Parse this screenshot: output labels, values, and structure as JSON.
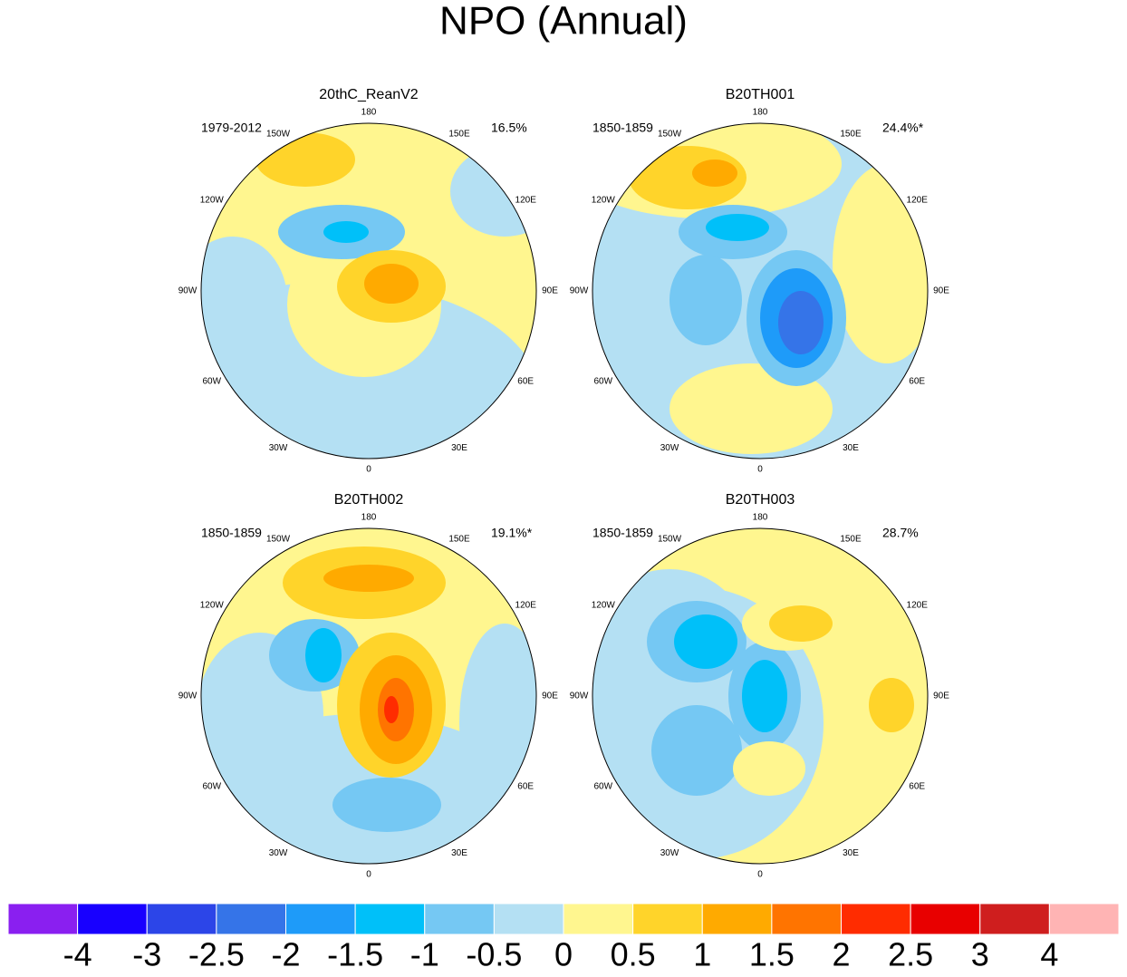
{
  "title": "NPO (Annual)",
  "panels": [
    {
      "title": "20thC_ReanV2",
      "period": "1979-2012",
      "variance": "16.5%"
    },
    {
      "title": "B20TH001",
      "period": "1850-1859",
      "variance": "24.4%*"
    },
    {
      "title": "B20TH002",
      "period": "1850-1859",
      "variance": "19.1%*"
    },
    {
      "title": "B20TH003",
      "period": "1850-1859",
      "variance": "28.7%"
    }
  ],
  "longitude_labels": [
    "0",
    "30E",
    "60E",
    "90E",
    "120E",
    "150E",
    "180",
    "150W",
    "120W",
    "90W",
    "60W",
    "30W"
  ],
  "colorbar": {
    "colors": [
      "#8a1ff0",
      "#1800ff",
      "#2c45e8",
      "#3574e8",
      "#1e9bf9",
      "#00c0f9",
      "#75c8f3",
      "#b4e0f3",
      "#fff68f",
      "#ffd42a",
      "#ffaa00",
      "#ff7400",
      "#ff2c00",
      "#e80000",
      "#cf1e1e",
      "#ffb4b4"
    ],
    "labels": [
      "-4",
      "-3",
      "-2.5",
      "-2",
      "-1.5",
      "-1",
      "-0.5",
      "0",
      "0.5",
      "1",
      "1.5",
      "2",
      "2.5",
      "3",
      "4"
    ]
  }
}
